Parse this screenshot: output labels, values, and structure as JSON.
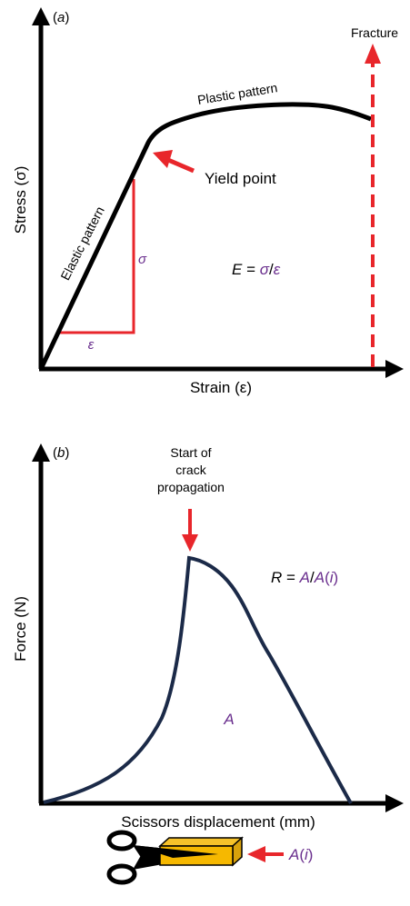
{
  "panel_a": {
    "label": {
      "open": "(",
      "letter": "a",
      "close": ")"
    },
    "y_axis_label": "Stress (σ)",
    "x_axis_label": "Strain (ε)",
    "fracture": "Fracture",
    "plastic": "Plastic pattern",
    "elastic": "Elastic pattern",
    "yield": "Yield point",
    "sigma": "σ",
    "epsilon": "ε",
    "formula": {
      "lhs": "E",
      "eq": " = ",
      "num": "σ",
      "slash": "/",
      "den": "ε"
    }
  },
  "panel_b": {
    "label": {
      "open": "(",
      "letter": "b",
      "close": ")"
    },
    "y_axis_label": "Force (N)",
    "x_axis_label": "Scissors displacement (mm)",
    "crack_label": [
      "Start of",
      "crack",
      "propagation"
    ],
    "area": "A",
    "formula": {
      "lhs": "R",
      "eq": " = ",
      "num": "A",
      "slash": "/",
      "den_letter": "A",
      "den_open": "(",
      "den_i": "i",
      "den_close": ")"
    },
    "sample": {
      "letter": "A",
      "open": "(",
      "i": "i",
      "close": ")"
    }
  }
}
